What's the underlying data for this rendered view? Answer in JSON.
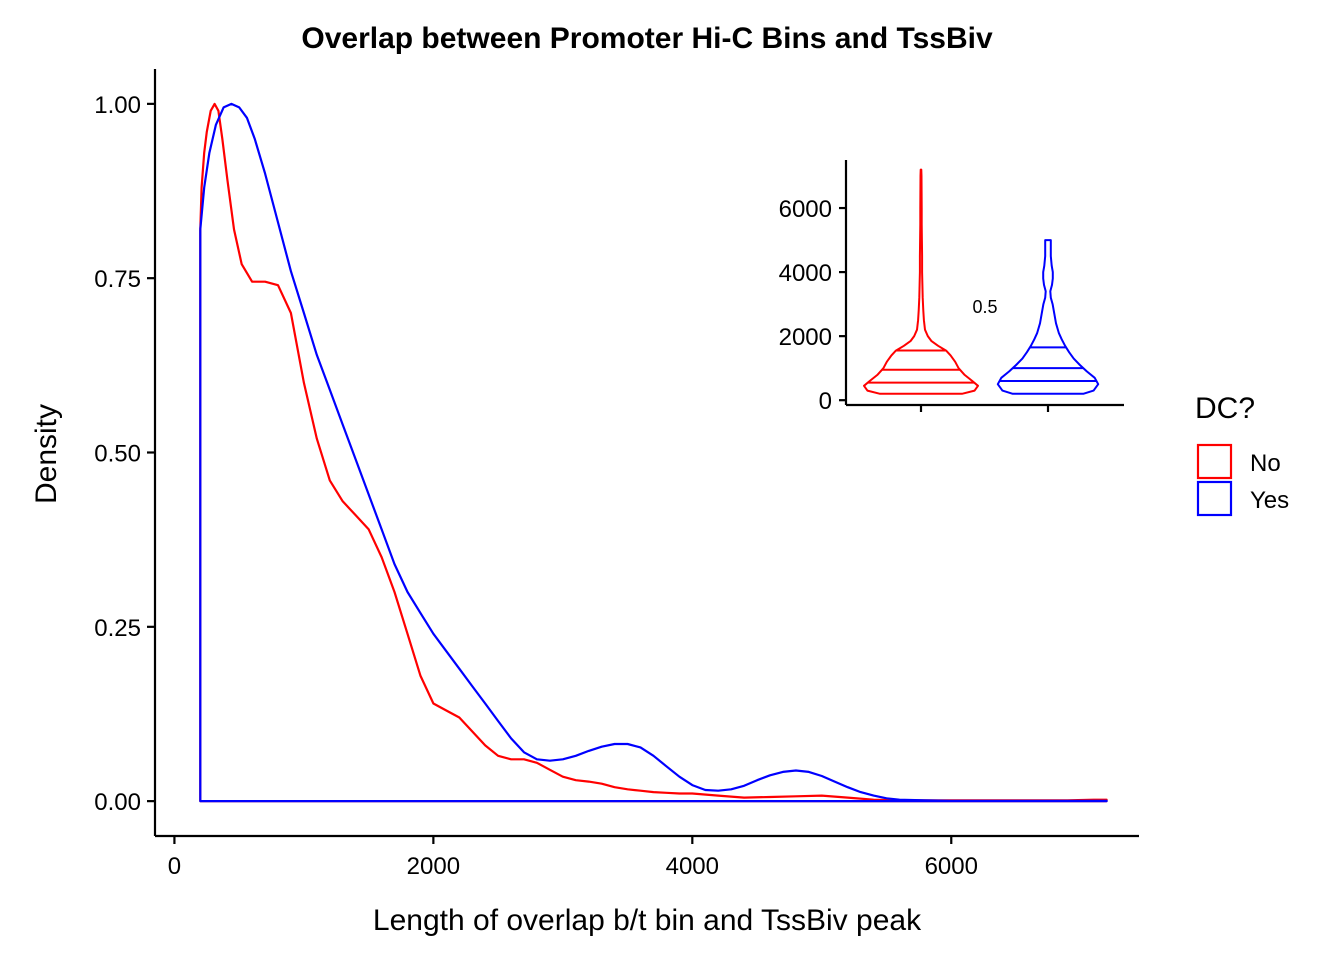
{
  "chart_data": [
    {
      "type": "line",
      "title": "Overlap between Promoter Hi-C Bins and TssBiv",
      "xlabel": "Length of overlap b/t bin and TssBiv peak",
      "ylabel": "Density",
      "xlim": [
        -150,
        7450
      ],
      "ylim": [
        -0.05,
        1.05
      ],
      "x_ticks": [
        0,
        2000,
        4000,
        6000
      ],
      "x_tick_labels": [
        "0",
        "2000",
        "4000",
        "6000"
      ],
      "y_ticks": [
        0,
        0.25,
        0.5,
        0.75,
        1.0
      ],
      "y_tick_labels": [
        "0.00",
        "0.25",
        "0.50",
        "0.75",
        "1.00"
      ],
      "grid": false,
      "legend": {
        "title": "DC?",
        "position": "right",
        "entries": [
          {
            "label": "No",
            "color": "#FF0000"
          },
          {
            "label": "Yes",
            "color": "#0000FF"
          }
        ]
      },
      "series": [
        {
          "name": "No",
          "color": "#FF0000",
          "x": [
            200,
            210,
            230,
            250,
            280,
            310,
            340,
            370,
            410,
            460,
            520,
            600,
            700,
            800,
            900,
            1000,
            1100,
            1200,
            1300,
            1400,
            1500,
            1600,
            1700,
            1800,
            1900,
            2000,
            2100,
            2200,
            2300,
            2400,
            2500,
            2600,
            2700,
            2800,
            2900,
            3000,
            3100,
            3200,
            3300,
            3400,
            3500,
            3600,
            3700,
            3800,
            3900,
            4000,
            4200,
            4400,
            4600,
            4800,
            5000,
            5200,
            5400,
            5600,
            5800,
            6000,
            6300,
            6600,
            6900,
            7100,
            7200,
            7200,
            200,
            200
          ],
          "y": [
            0.82,
            0.88,
            0.93,
            0.96,
            0.99,
            1.0,
            0.99,
            0.95,
            0.89,
            0.82,
            0.77,
            0.745,
            0.745,
            0.74,
            0.7,
            0.6,
            0.52,
            0.46,
            0.43,
            0.41,
            0.39,
            0.35,
            0.3,
            0.24,
            0.18,
            0.14,
            0.13,
            0.12,
            0.1,
            0.08,
            0.065,
            0.06,
            0.06,
            0.055,
            0.045,
            0.035,
            0.03,
            0.028,
            0.025,
            0.02,
            0.017,
            0.015,
            0.013,
            0.012,
            0.011,
            0.011,
            0.008,
            0.005,
            0.006,
            0.007,
            0.008,
            0.005,
            0.002,
            0.001,
            0.001,
            0.001,
            0.001,
            0.001,
            0.001,
            0.002,
            0.002,
            0,
            0,
            0.82
          ]
        },
        {
          "name": "Yes",
          "color": "#0000FF",
          "x": [
            200,
            230,
            270,
            320,
            380,
            440,
            500,
            560,
            620,
            700,
            800,
            900,
            1000,
            1100,
            1200,
            1300,
            1400,
            1500,
            1600,
            1700,
            1800,
            1900,
            2000,
            2100,
            2200,
            2300,
            2400,
            2500,
            2600,
            2700,
            2800,
            2900,
            3000,
            3100,
            3200,
            3300,
            3400,
            3500,
            3600,
            3700,
            3800,
            3900,
            4000,
            4100,
            4200,
            4300,
            4400,
            4500,
            4600,
            4700,
            4800,
            4900,
            5000,
            5100,
            5200,
            5300,
            5400,
            5500,
            5600,
            5800,
            6000,
            6300,
            6600,
            6900,
            7200,
            7200,
            200,
            200
          ],
          "y": [
            0.82,
            0.88,
            0.93,
            0.97,
            0.995,
            1.0,
            0.995,
            0.98,
            0.95,
            0.9,
            0.83,
            0.76,
            0.7,
            0.64,
            0.59,
            0.54,
            0.49,
            0.44,
            0.39,
            0.34,
            0.3,
            0.27,
            0.24,
            0.215,
            0.19,
            0.165,
            0.14,
            0.115,
            0.09,
            0.07,
            0.06,
            0.058,
            0.06,
            0.065,
            0.072,
            0.078,
            0.082,
            0.082,
            0.077,
            0.065,
            0.05,
            0.035,
            0.023,
            0.016,
            0.015,
            0.017,
            0.022,
            0.03,
            0.037,
            0.042,
            0.044,
            0.042,
            0.036,
            0.028,
            0.02,
            0.013,
            0.008,
            0.004,
            0.002,
            0.001,
            0.0005,
            0.0005,
            0.0005,
            0.0005,
            0.0005,
            0,
            0,
            0.82
          ]
        }
      ]
    },
    {
      "type": "violin",
      "ylim": [
        -150,
        7500
      ],
      "y_ticks": [
        0,
        2000,
        4000,
        6000
      ],
      "y_tick_labels": [
        "0",
        "2000",
        "4000",
        "6000"
      ],
      "categories": [
        "No",
        "Yes"
      ],
      "annotation": "0.5",
      "series": [
        {
          "name": "No",
          "color": "#FF0000",
          "quantiles": [
            550,
            950,
            1550
          ],
          "profile": [
            [
              200,
              0.72
            ],
            [
              300,
              0.94
            ],
            [
              450,
              1.0
            ],
            [
              600,
              0.9
            ],
            [
              800,
              0.76
            ],
            [
              1000,
              0.66
            ],
            [
              1200,
              0.6
            ],
            [
              1400,
              0.52
            ],
            [
              1550,
              0.44
            ],
            [
              1700,
              0.3
            ],
            [
              1850,
              0.18
            ],
            [
              2000,
              0.12
            ],
            [
              2200,
              0.07
            ],
            [
              2500,
              0.05
            ],
            [
              2800,
              0.04
            ],
            [
              3200,
              0.03
            ],
            [
              3600,
              0.025
            ],
            [
              4000,
              0.02
            ],
            [
              4500,
              0.02
            ],
            [
              5000,
              0.015
            ],
            [
              5500,
              0.012
            ],
            [
              6000,
              0.012
            ],
            [
              6500,
              0.01
            ],
            [
              7000,
              0.008
            ],
            [
              7200,
              0.005
            ]
          ]
        },
        {
          "name": "Yes",
          "color": "#0000FF",
          "quantiles": [
            600,
            1000,
            1650
          ],
          "profile": [
            [
              200,
              0.62
            ],
            [
              300,
              0.8
            ],
            [
              500,
              0.88
            ],
            [
              700,
              0.82
            ],
            [
              900,
              0.68
            ],
            [
              1100,
              0.56
            ],
            [
              1300,
              0.45
            ],
            [
              1500,
              0.37
            ],
            [
              1700,
              0.3
            ],
            [
              1900,
              0.24
            ],
            [
              2100,
              0.19
            ],
            [
              2400,
              0.14
            ],
            [
              2700,
              0.11
            ],
            [
              3000,
              0.08
            ],
            [
              3200,
              0.05
            ],
            [
              3400,
              0.04
            ],
            [
              3600,
              0.07
            ],
            [
              3800,
              0.085
            ],
            [
              4000,
              0.085
            ],
            [
              4200,
              0.065
            ],
            [
              4500,
              0.05
            ],
            [
              4800,
              0.05
            ],
            [
              5000,
              0.05
            ]
          ]
        }
      ]
    }
  ]
}
